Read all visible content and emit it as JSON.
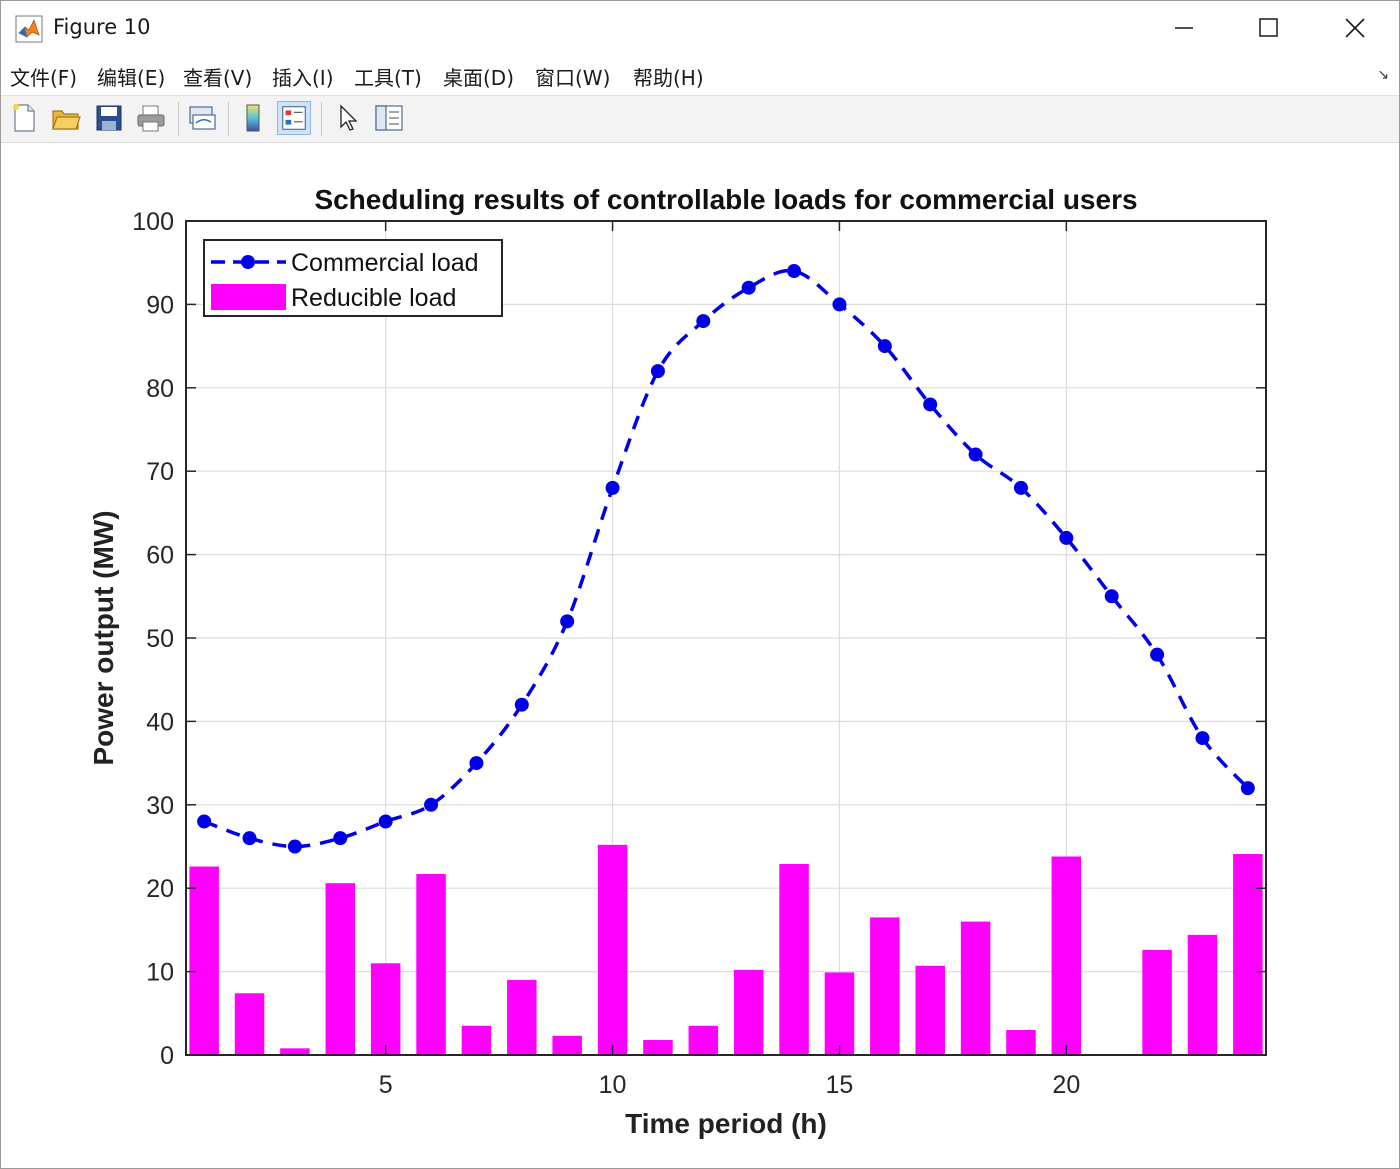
{
  "window": {
    "title": "Figure 10",
    "accent": "#f58220"
  },
  "menu": {
    "items": [
      "文件(F)",
      "编辑(E)",
      "查看(V)",
      "插入(I)",
      "工具(T)",
      "桌面(D)",
      "窗口(W)",
      "帮助(H)"
    ]
  },
  "toolbar": {
    "buttons": [
      "new-figure-icon",
      "open-file-icon",
      "save-icon",
      "print-icon",
      "link-plot-icon",
      "colorbar-icon",
      "legend-icon",
      "pointer-icon",
      "property-editor-icon"
    ]
  },
  "chart_data": {
    "type": "bar",
    "title": "Scheduling results of controllable loads for commercial users",
    "xlabel": "Time period (h)",
    "ylabel": "Power output (MW)",
    "xlim": [
      0.6,
      24.4
    ],
    "ylim": [
      0,
      100
    ],
    "xticks": [
      5,
      10,
      15,
      20
    ],
    "yticks": [
      0,
      10,
      20,
      30,
      40,
      50,
      60,
      70,
      80,
      90,
      100
    ],
    "grid": true,
    "legend_position": "top-left",
    "x": [
      1,
      2,
      3,
      4,
      5,
      6,
      7,
      8,
      9,
      10,
      11,
      12,
      13,
      14,
      15,
      16,
      17,
      18,
      19,
      20,
      21,
      22,
      23,
      24
    ],
    "series": [
      {
        "name": "Commercial load",
        "kind": "line",
        "style": "dashed with circle markers",
        "color": "#0000e6",
        "values": [
          28,
          26,
          25,
          26,
          28,
          30,
          35,
          42,
          52,
          68,
          82,
          88,
          92,
          94,
          90,
          85,
          78,
          72,
          68,
          62,
          55,
          48,
          38,
          32
        ]
      },
      {
        "name": "Reducible load",
        "kind": "bar",
        "color": "#ff00ff",
        "values": [
          22.6,
          7.4,
          0.8,
          20.6,
          11.0,
          21.7,
          3.5,
          9.0,
          2.3,
          25.2,
          1.8,
          3.5,
          10.2,
          22.9,
          9.9,
          16.5,
          10.7,
          16.0,
          3.0,
          23.8,
          0.1,
          12.6,
          14.4,
          24.1
        ]
      }
    ]
  }
}
